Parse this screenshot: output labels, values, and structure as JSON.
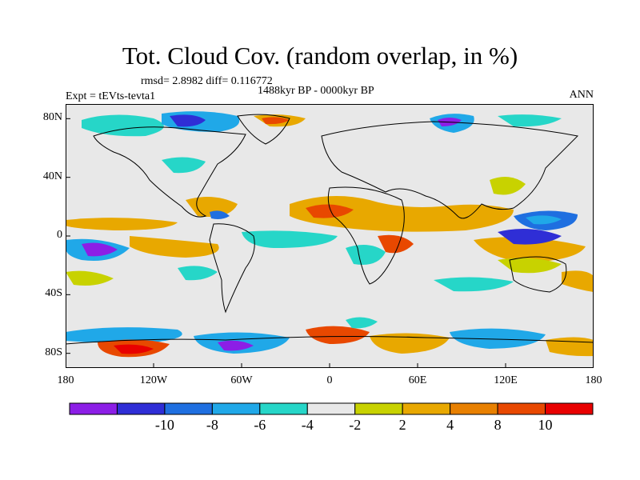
{
  "title": "Tot. Cloud Cov. (random overlap, in %)",
  "stats": "rmsd= 2.8982 diff= 0.116772",
  "period": "1488kyr BP - 0000kyr BP",
  "experiment": "Expt = tEVts-tevta1",
  "season": "ANN",
  "map": {
    "lon_range": [
      -180,
      180
    ],
    "lat_range": [
      -90,
      90
    ],
    "y_ticks": [
      {
        "lat": 80,
        "label": "80N"
      },
      {
        "lat": 40,
        "label": "40N"
      },
      {
        "lat": 0,
        "label": "0"
      },
      {
        "lat": -40,
        "label": "40S"
      },
      {
        "lat": -80,
        "label": "80S"
      }
    ],
    "x_ticks": [
      {
        "lon": -180,
        "label": "180"
      },
      {
        "lon": -120,
        "label": "120W"
      },
      {
        "lon": -60,
        "label": "60W"
      },
      {
        "lon": 0,
        "label": "0"
      },
      {
        "lon": 60,
        "label": "60E"
      },
      {
        "lon": 120,
        "label": "120E"
      },
      {
        "lon": 180,
        "label": "180"
      }
    ],
    "background_color": "#e8e8e8"
  },
  "colorbar": {
    "colors": [
      "#8c1ee6",
      "#2f2ed6",
      "#1f6fe0",
      "#20a8e8",
      "#26d6c8",
      "#e8e8e8",
      "#c8d200",
      "#e8a800",
      "#e88000",
      "#e84800",
      "#e80000"
    ],
    "labels": [
      "-10",
      "-8",
      "-6",
      "-4",
      "-2",
      "2",
      "4",
      "8",
      "10"
    ]
  }
}
